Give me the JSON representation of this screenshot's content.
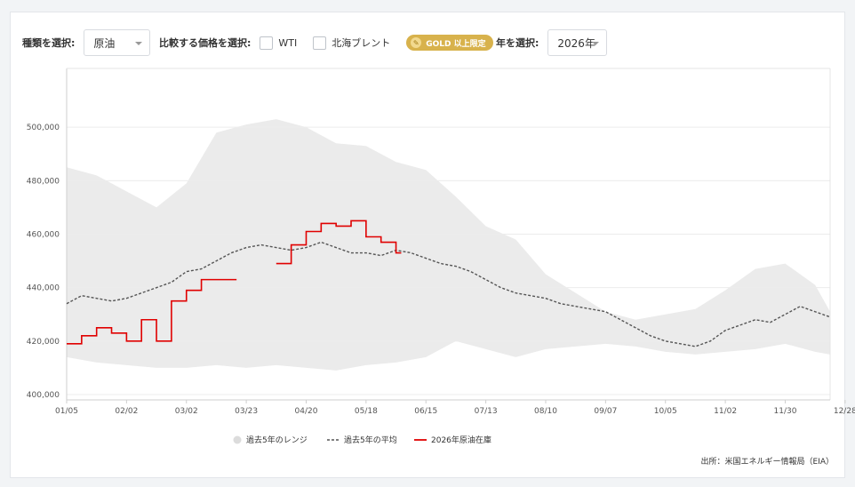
{
  "controls": {
    "type_label": "種類を選択:",
    "type_value": "原油",
    "compare_label": "比較する価格を選択:",
    "compare_wti": "WTI",
    "compare_brent": "北海ブレント",
    "gold_badge": "GOLD 以上限定",
    "year_label": "年を選択:",
    "year_value": "2026年"
  },
  "source": "出所：米国エネルギー情報局（EIA）",
  "colors": {
    "range": "#ebebeb",
    "average": "#555555",
    "current": "#e00000",
    "grid": "#ececec"
  },
  "chart_data": {
    "type": "line",
    "title": "",
    "xlabel": "",
    "ylabel": "",
    "x_ticks": [
      "01/05",
      "02/02",
      "03/02",
      "03/23",
      "04/20",
      "05/18",
      "06/15",
      "07/13",
      "08/10",
      "09/07",
      "10/05",
      "11/02",
      "11/30",
      "12/28"
    ],
    "y_ticks": [
      "400,000",
      "420,000",
      "440,000",
      "460,000",
      "480,000",
      "500,000"
    ],
    "ylim": [
      398000,
      522000
    ],
    "x_unit": "week",
    "x_range": [
      1,
      52
    ],
    "grid": "horizontal",
    "legend_position": "bottom",
    "legend": [
      "過去5年のレンジ",
      "過去5年の平均",
      "2026年原油在庫"
    ],
    "series": [
      {
        "name": "過去5年のレンジ",
        "kind": "range",
        "x": [
          1,
          3,
          5,
          7,
          9,
          11,
          13,
          15,
          17,
          19,
          21,
          23,
          25,
          27,
          29,
          31,
          33,
          35,
          37,
          39,
          41,
          43,
          45,
          47,
          49,
          51,
          52
        ],
        "low": [
          414000,
          412000,
          411000,
          410000,
          410000,
          411000,
          410000,
          411000,
          410000,
          409000,
          411000,
          412000,
          414000,
          420000,
          417000,
          414000,
          417000,
          418000,
          419000,
          418000,
          416000,
          415000,
          416000,
          417000,
          419000,
          416000,
          415000
        ],
        "high": [
          485000,
          482000,
          476000,
          470000,
          479000,
          498000,
          501000,
          503000,
          500000,
          494000,
          493000,
          487000,
          484000,
          474000,
          463000,
          458000,
          445000,
          438000,
          431000,
          428000,
          430000,
          432000,
          439000,
          447000,
          449000,
          441000,
          431000
        ]
      },
      {
        "name": "過去5年の平均",
        "kind": "dashed-line",
        "x": [
          1,
          2,
          3,
          4,
          5,
          6,
          7,
          8,
          9,
          10,
          11,
          12,
          13,
          14,
          15,
          16,
          17,
          18,
          19,
          20,
          21,
          22,
          23,
          24,
          25,
          26,
          27,
          28,
          29,
          30,
          31,
          32,
          33,
          34,
          35,
          36,
          37,
          38,
          39,
          40,
          41,
          42,
          43,
          44,
          45,
          46,
          47,
          48,
          49,
          50,
          51,
          52
        ],
        "values": [
          434000,
          437000,
          436000,
          435000,
          436000,
          438000,
          440000,
          442000,
          446000,
          447000,
          450000,
          453000,
          455000,
          456000,
          455000,
          454000,
          455000,
          457000,
          455000,
          453000,
          453000,
          452000,
          454000,
          453000,
          451000,
          449000,
          448000,
          446000,
          443000,
          440000,
          438000,
          437000,
          436000,
          434000,
          433000,
          432000,
          431000,
          428000,
          425000,
          422000,
          420000,
          419000,
          418000,
          420000,
          424000,
          426000,
          428000,
          427000,
          430000,
          433000,
          431000,
          429000
        ]
      },
      {
        "name": "2026年原油在庫",
        "kind": "step-line",
        "segments": [
          {
            "x": [
              1,
              2,
              3,
              4,
              5,
              6,
              7,
              8,
              9,
              10,
              11,
              12
            ],
            "values": [
              419000,
              422000,
              425000,
              423000,
              420000,
              428000,
              420000,
              435000,
              439000,
              443000,
              443000,
              443000
            ]
          },
          {
            "x": [
              15,
              16,
              17,
              18,
              19,
              20,
              21,
              22,
              23
            ],
            "values": [
              449000,
              456000,
              461000,
              464000,
              463000,
              465000,
              459000,
              457000,
              453000
            ]
          }
        ]
      }
    ]
  }
}
